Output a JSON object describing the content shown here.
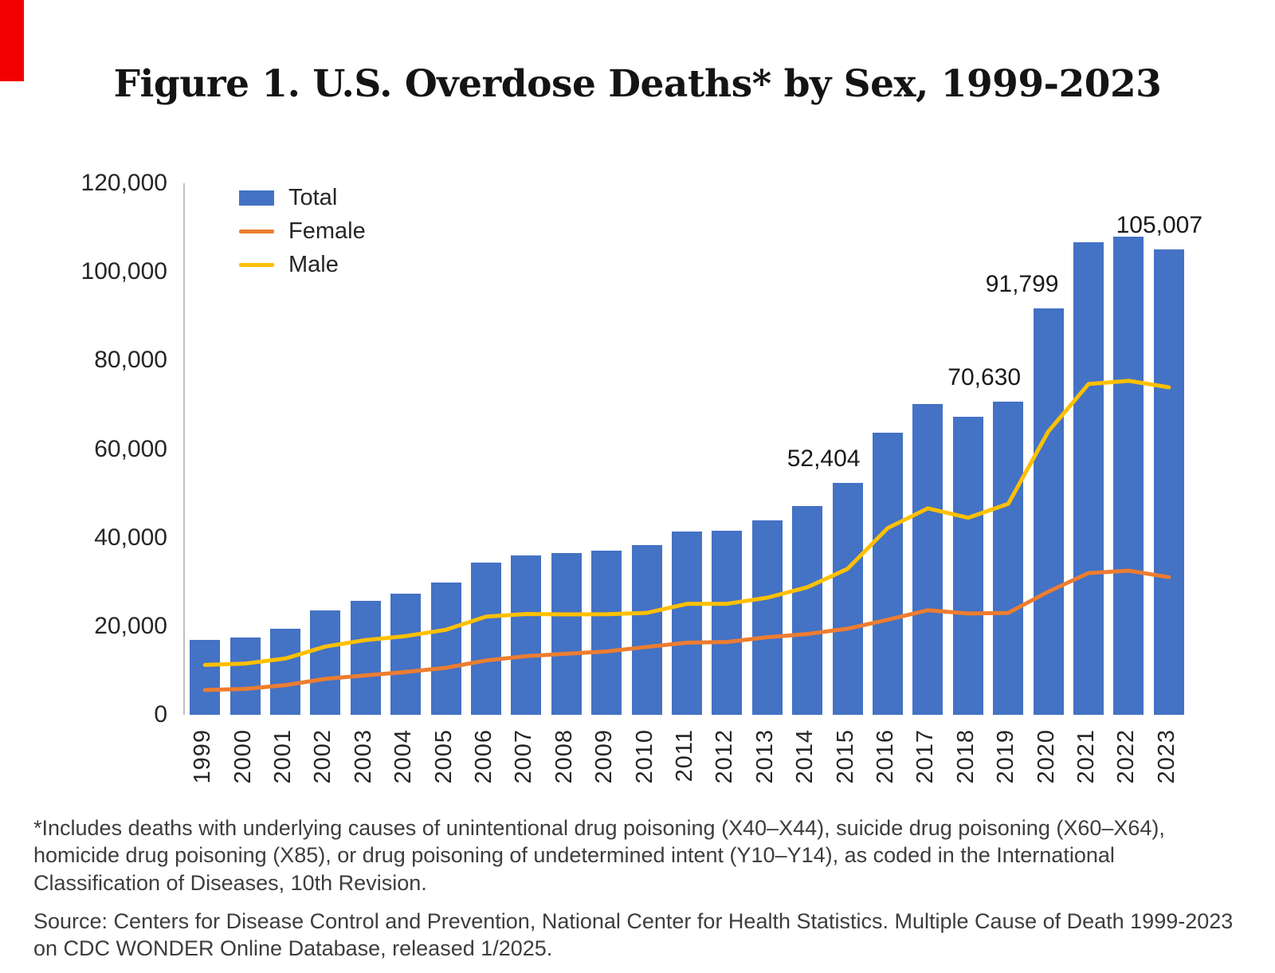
{
  "page": {
    "title": "Figure 1. U.S. Overdose Deaths* by Sex, 1999-2023",
    "background": "#ffffff",
    "edge_artifact_color": "#f20000"
  },
  "chart_data": {
    "type": "bar",
    "title": "Figure 1. U.S. Overdose Deaths* by Sex, 1999-2023",
    "categories": [
      "1999",
      "2000",
      "2001",
      "2002",
      "2003",
      "2004",
      "2005",
      "2006",
      "2007",
      "2008",
      "2009",
      "2010",
      "2011",
      "2012",
      "2013",
      "2014",
      "2015",
      "2016",
      "2017",
      "2018",
      "2019",
      "2020",
      "2021",
      "2022",
      "2023"
    ],
    "series": [
      {
        "name": "Total",
        "type": "bar",
        "color": "#4472C4",
        "values": [
          16849,
          17415,
          19394,
          23518,
          25785,
          27424,
          29813,
          34425,
          36010,
          36450,
          37004,
          38329,
          41340,
          41502,
          43982,
          47055,
          52404,
          63632,
          70237,
          67367,
          70630,
          91799,
          106699,
          107941,
          105007
        ]
      },
      {
        "name": "Female",
        "type": "line",
        "color": "#ED7D31",
        "values": [
          5591,
          5852,
          6693,
          8105,
          8905,
          9655,
          10614,
          12262,
          13248,
          13782,
          14307,
          15323,
          16290,
          16447,
          17531,
          18243,
          19447,
          21463,
          23615,
          22875,
          23013,
          27814,
          32010,
          32537,
          31065
        ]
      },
      {
        "name": "Male",
        "type": "line",
        "color": "#FFC000",
        "values": [
          11258,
          11563,
          12701,
          15413,
          16880,
          17769,
          19199,
          22163,
          22762,
          22668,
          22697,
          23006,
          25050,
          25055,
          26451,
          28812,
          32957,
          42169,
          46622,
          44492,
          47617,
          63985,
          74689,
          75404,
          73942
        ]
      }
    ],
    "ylim": [
      0,
      120000
    ],
    "ytick_interval": 20000,
    "ytick_labels": [
      "120,000",
      "100,000",
      "80,000",
      "60,000",
      "40,000",
      "20,000",
      "0"
    ],
    "grid": false,
    "legend_position": "top-left",
    "annotations": [
      {
        "category": "2015",
        "label": "52,404",
        "dx": -30
      },
      {
        "category": "2019",
        "label": "70,630",
        "dx": -30
      },
      {
        "category": "2020",
        "label": "91,799",
        "dx": -33
      },
      {
        "category": "2023",
        "label": "105,007",
        "dx": -12
      }
    ]
  },
  "footnotes": {
    "definition": "*Includes deaths with underlying causes of unintentional drug poisoning (X40–X44), suicide drug poisoning (X60–X64), homicide drug poisoning (X85), or drug poisoning of undetermined intent (Y10–Y14), as coded in the International Classification of Diseases, 10th Revision.",
    "source": "Source: Centers for Disease Control and Prevention, National Center for Health Statistics. Multiple Cause of Death 1999-2023 on CDC WONDER Online Database, released 1/2025."
  }
}
